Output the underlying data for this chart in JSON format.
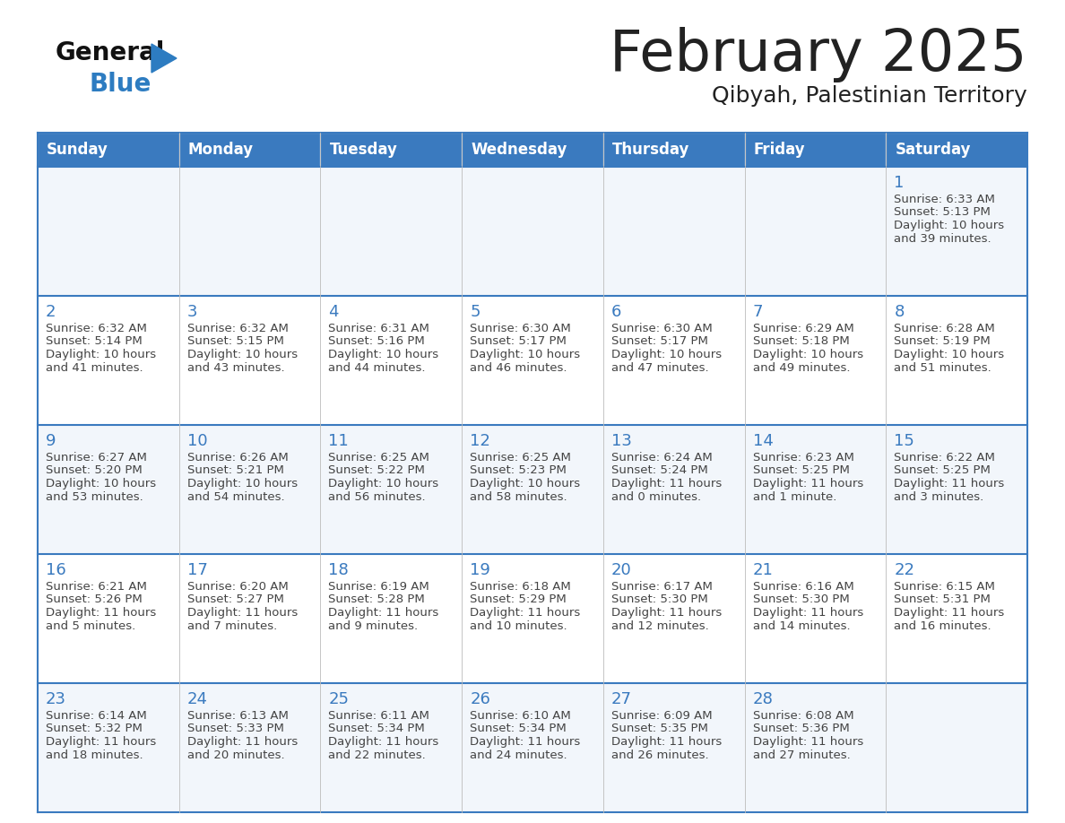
{
  "title": "February 2025",
  "subtitle": "Qibyah, Palestinian Territory",
  "header_color": "#3a7abf",
  "header_text_color": "#ffffff",
  "day_names": [
    "Sunday",
    "Monday",
    "Tuesday",
    "Wednesday",
    "Thursday",
    "Friday",
    "Saturday"
  ],
  "cell_bg_even": "#f2f6fb",
  "cell_bg_odd": "#ffffff",
  "border_color": "#3a7abf",
  "text_color": "#222222",
  "date_color": "#3a7abf",
  "info_color": "#444444",
  "logo_general_color": "#111111",
  "logo_blue_color": "#2d7cc1",
  "days": [
    {
      "date": 1,
      "row": 0,
      "col": 6,
      "sunrise": "6:33 AM",
      "sunset": "5:13 PM",
      "daylight": "10 hours and 39 minutes."
    },
    {
      "date": 2,
      "row": 1,
      "col": 0,
      "sunrise": "6:32 AM",
      "sunset": "5:14 PM",
      "daylight": "10 hours and 41 minutes."
    },
    {
      "date": 3,
      "row": 1,
      "col": 1,
      "sunrise": "6:32 AM",
      "sunset": "5:15 PM",
      "daylight": "10 hours and 43 minutes."
    },
    {
      "date": 4,
      "row": 1,
      "col": 2,
      "sunrise": "6:31 AM",
      "sunset": "5:16 PM",
      "daylight": "10 hours and 44 minutes."
    },
    {
      "date": 5,
      "row": 1,
      "col": 3,
      "sunrise": "6:30 AM",
      "sunset": "5:17 PM",
      "daylight": "10 hours and 46 minutes."
    },
    {
      "date": 6,
      "row": 1,
      "col": 4,
      "sunrise": "6:30 AM",
      "sunset": "5:17 PM",
      "daylight": "10 hours and 47 minutes."
    },
    {
      "date": 7,
      "row": 1,
      "col": 5,
      "sunrise": "6:29 AM",
      "sunset": "5:18 PM",
      "daylight": "10 hours and 49 minutes."
    },
    {
      "date": 8,
      "row": 1,
      "col": 6,
      "sunrise": "6:28 AM",
      "sunset": "5:19 PM",
      "daylight": "10 hours and 51 minutes."
    },
    {
      "date": 9,
      "row": 2,
      "col": 0,
      "sunrise": "6:27 AM",
      "sunset": "5:20 PM",
      "daylight": "10 hours and 53 minutes."
    },
    {
      "date": 10,
      "row": 2,
      "col": 1,
      "sunrise": "6:26 AM",
      "sunset": "5:21 PM",
      "daylight": "10 hours and 54 minutes."
    },
    {
      "date": 11,
      "row": 2,
      "col": 2,
      "sunrise": "6:25 AM",
      "sunset": "5:22 PM",
      "daylight": "10 hours and 56 minutes."
    },
    {
      "date": 12,
      "row": 2,
      "col": 3,
      "sunrise": "6:25 AM",
      "sunset": "5:23 PM",
      "daylight": "10 hours and 58 minutes."
    },
    {
      "date": 13,
      "row": 2,
      "col": 4,
      "sunrise": "6:24 AM",
      "sunset": "5:24 PM",
      "daylight": "11 hours and 0 minutes."
    },
    {
      "date": 14,
      "row": 2,
      "col": 5,
      "sunrise": "6:23 AM",
      "sunset": "5:25 PM",
      "daylight": "11 hours and 1 minute."
    },
    {
      "date": 15,
      "row": 2,
      "col": 6,
      "sunrise": "6:22 AM",
      "sunset": "5:25 PM",
      "daylight": "11 hours and 3 minutes."
    },
    {
      "date": 16,
      "row": 3,
      "col": 0,
      "sunrise": "6:21 AM",
      "sunset": "5:26 PM",
      "daylight": "11 hours and 5 minutes."
    },
    {
      "date": 17,
      "row": 3,
      "col": 1,
      "sunrise": "6:20 AM",
      "sunset": "5:27 PM",
      "daylight": "11 hours and 7 minutes."
    },
    {
      "date": 18,
      "row": 3,
      "col": 2,
      "sunrise": "6:19 AM",
      "sunset": "5:28 PM",
      "daylight": "11 hours and 9 minutes."
    },
    {
      "date": 19,
      "row": 3,
      "col": 3,
      "sunrise": "6:18 AM",
      "sunset": "5:29 PM",
      "daylight": "11 hours and 10 minutes."
    },
    {
      "date": 20,
      "row": 3,
      "col": 4,
      "sunrise": "6:17 AM",
      "sunset": "5:30 PM",
      "daylight": "11 hours and 12 minutes."
    },
    {
      "date": 21,
      "row": 3,
      "col": 5,
      "sunrise": "6:16 AM",
      "sunset": "5:30 PM",
      "daylight": "11 hours and 14 minutes."
    },
    {
      "date": 22,
      "row": 3,
      "col": 6,
      "sunrise": "6:15 AM",
      "sunset": "5:31 PM",
      "daylight": "11 hours and 16 minutes."
    },
    {
      "date": 23,
      "row": 4,
      "col": 0,
      "sunrise": "6:14 AM",
      "sunset": "5:32 PM",
      "daylight": "11 hours and 18 minutes."
    },
    {
      "date": 24,
      "row": 4,
      "col": 1,
      "sunrise": "6:13 AM",
      "sunset": "5:33 PM",
      "daylight": "11 hours and 20 minutes."
    },
    {
      "date": 25,
      "row": 4,
      "col": 2,
      "sunrise": "6:11 AM",
      "sunset": "5:34 PM",
      "daylight": "11 hours and 22 minutes."
    },
    {
      "date": 26,
      "row": 4,
      "col": 3,
      "sunrise": "6:10 AM",
      "sunset": "5:34 PM",
      "daylight": "11 hours and 24 minutes."
    },
    {
      "date": 27,
      "row": 4,
      "col": 4,
      "sunrise": "6:09 AM",
      "sunset": "5:35 PM",
      "daylight": "11 hours and 26 minutes."
    },
    {
      "date": 28,
      "row": 4,
      "col": 5,
      "sunrise": "6:08 AM",
      "sunset": "5:36 PM",
      "daylight": "11 hours and 27 minutes."
    }
  ]
}
